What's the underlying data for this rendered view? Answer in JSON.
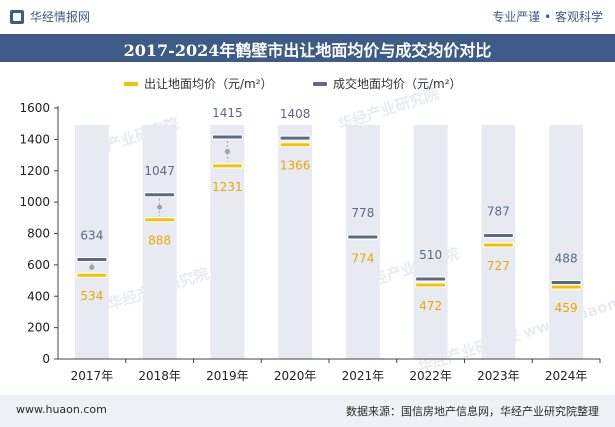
{
  "header": {
    "brand": "华经情报网",
    "tagline": "专业严谨 • 客观科学"
  },
  "title": "2017-2024年鹤壁市出让地面均价与成交均价对比",
  "footer": {
    "website": "www.huaon.com",
    "source": "数据来源：国信房地产信息网，华经产业研究院整理"
  },
  "watermarks": [
    "华经产业研究院",
    "华经产业研究院",
    "华经产业研究院",
    "华经产业研究院",
    "华经产业研究院 www.huaon.com"
  ],
  "colors": {
    "transfer": "#f5c200",
    "deal": "#5b6b85",
    "column": "#e7ebf1",
    "transfer_label": "#e9a800",
    "deal_label": "#5b6b85"
  },
  "chart_data": {
    "type": "bar",
    "title": "2017-2024年鹤壁市出让地面均价与成交均价对比",
    "categories": [
      "2017年",
      "2018年",
      "2019年",
      "2020年",
      "2021年",
      "2022年",
      "2023年",
      "2024年"
    ],
    "series": [
      {
        "name": "出让地面均价（元/m²）",
        "values": [
          534,
          888,
          1231,
          1366,
          774,
          472,
          727,
          459
        ]
      },
      {
        "name": "成交地面均价（元/m²）",
        "values": [
          634,
          1047,
          1415,
          1408,
          778,
          510,
          787,
          488
        ]
      }
    ],
    "xlabel": "",
    "ylabel": "",
    "ylim": [
      0,
      1600
    ],
    "yticks": [
      0,
      200,
      400,
      600,
      800,
      1000,
      1200,
      1400,
      1600
    ],
    "legend_position": "top"
  }
}
